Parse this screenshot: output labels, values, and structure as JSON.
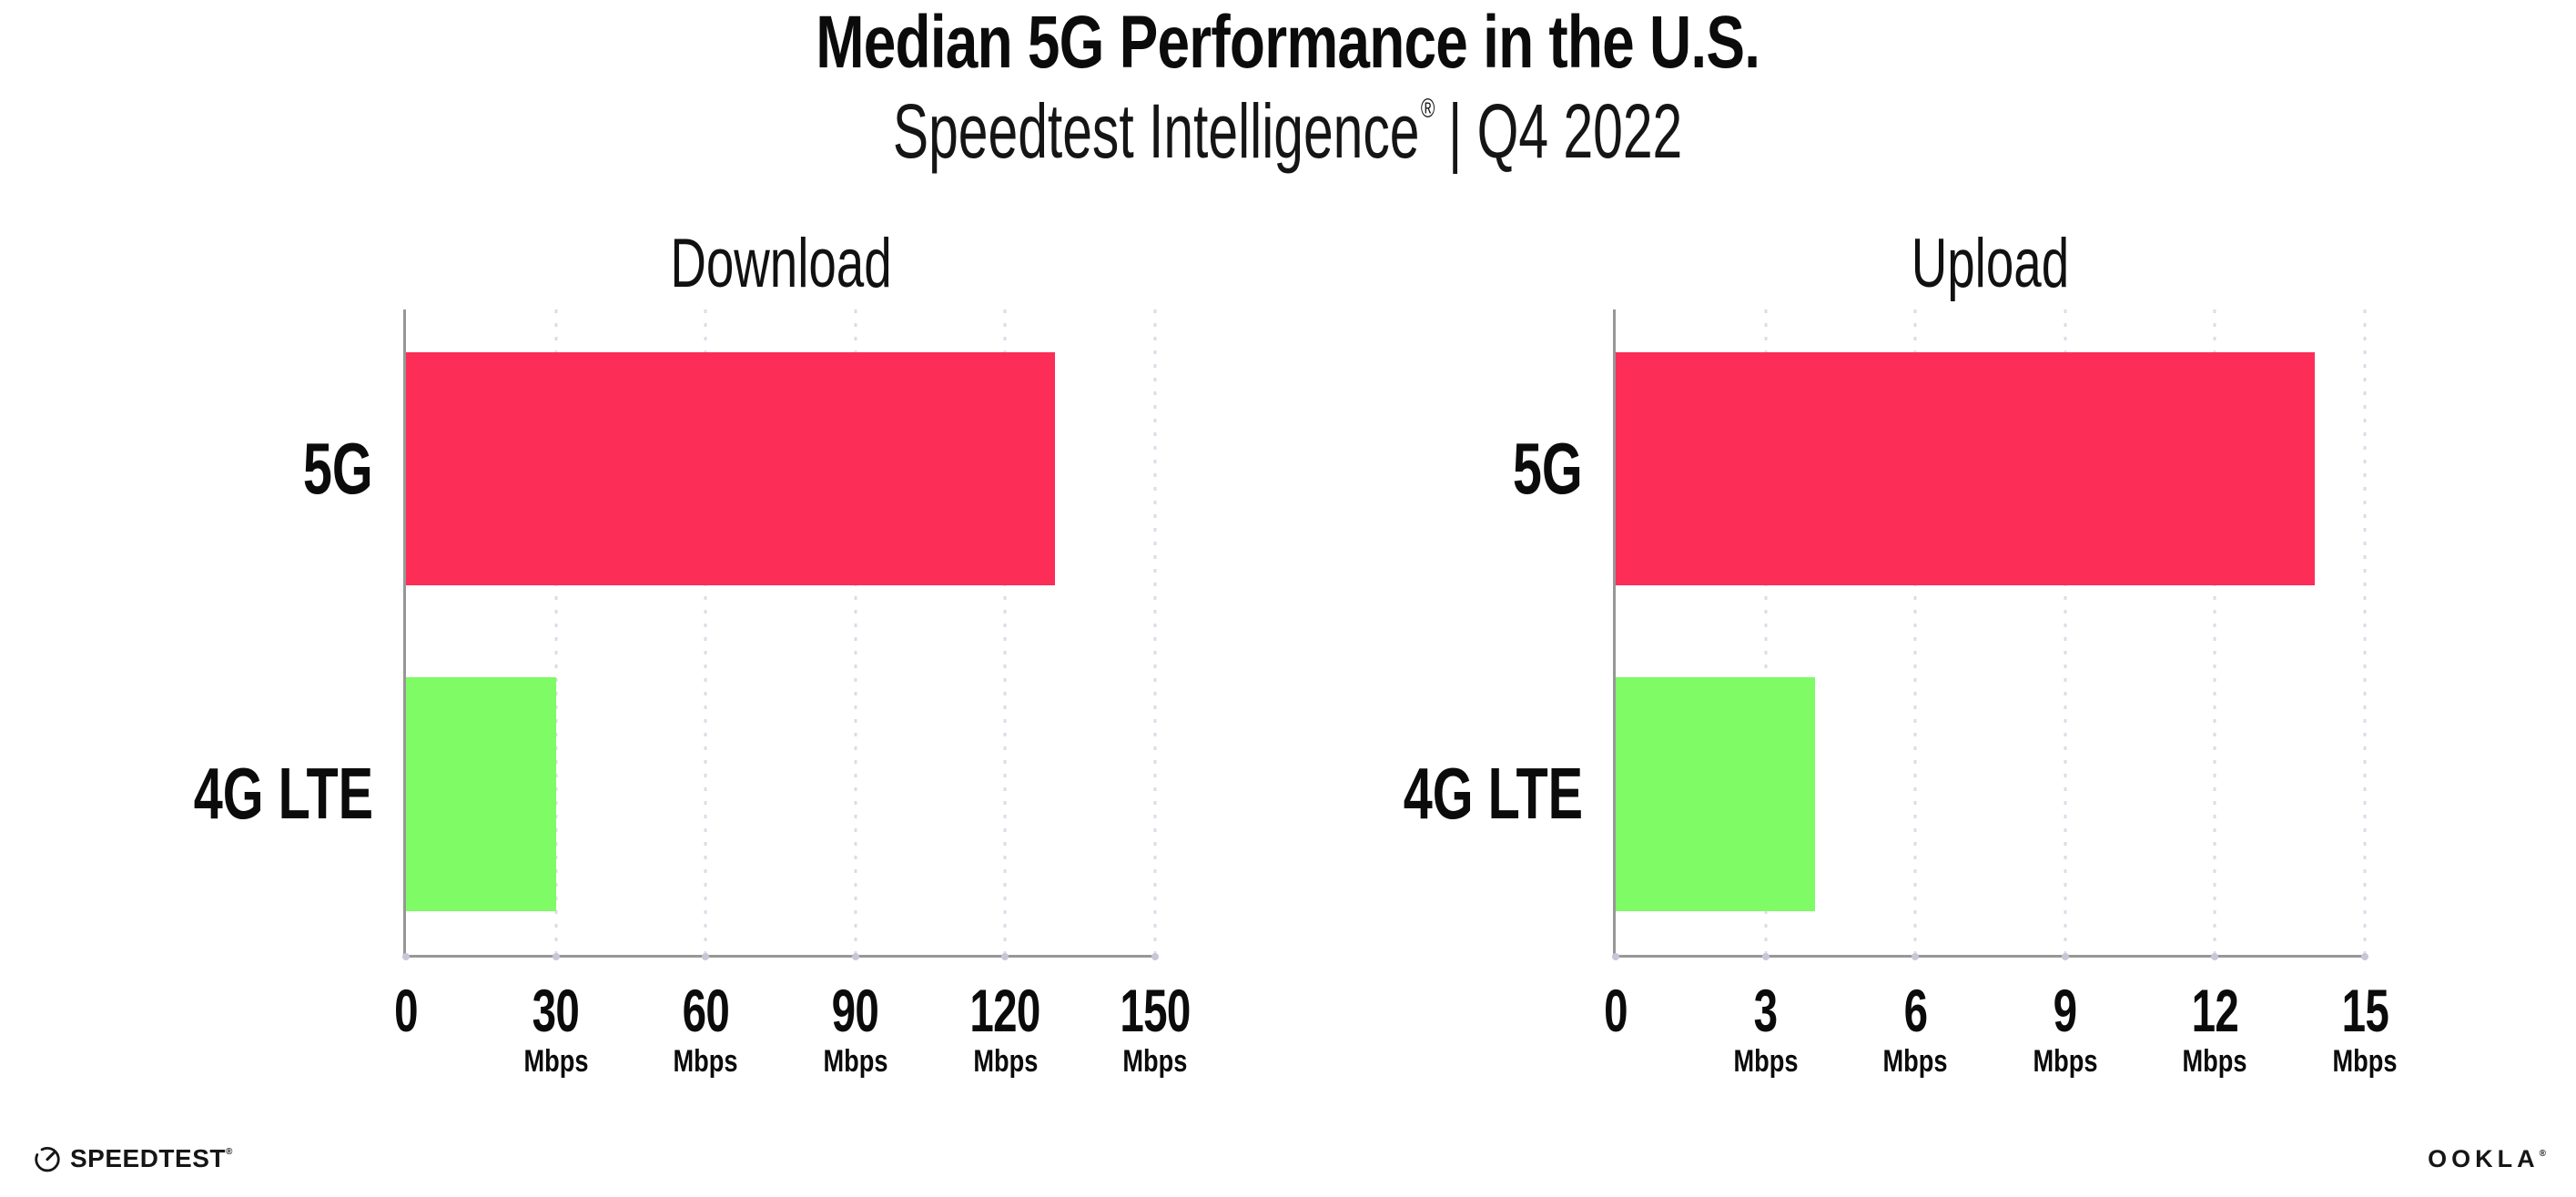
{
  "header": {
    "title": "Median 5G Performance in the U.S.",
    "subtitle_brand": "Speedtest Intelligence",
    "subtitle_mark": "®",
    "subtitle_rest": "| Q4 2022"
  },
  "footer": {
    "speedtest_label": "SPEEDTEST",
    "speedtest_mark": "®",
    "ookla_label": "OOKLA",
    "ookla_mark": "®"
  },
  "colors": {
    "bar_5g": "#FC2D57",
    "bar_4g_lte": "#7EFB65",
    "axis_line": "#979797",
    "gridline_dots": "#DCDCE8",
    "axis_tick_dots": "#C7C7D8",
    "text": "#0B0B0B",
    "background": "#FFFFFF"
  },
  "chart_data": [
    {
      "type": "bar",
      "orientation": "horizontal",
      "title": "Download",
      "categories": [
        "5G",
        "4G LTE"
      ],
      "values": [
        130,
        30
      ],
      "unit": "Mbps",
      "xlim": [
        0,
        150
      ],
      "xticks": [
        0,
        30,
        60,
        90,
        120,
        150
      ],
      "bar_colors": [
        "#FC2D57",
        "#7EFB65"
      ],
      "grid": "dotted vertical gridlines at each tick",
      "legend_position": "none"
    },
    {
      "type": "bar",
      "orientation": "horizontal",
      "title": "Upload",
      "categories": [
        "5G",
        "4G LTE"
      ],
      "values": [
        14,
        4
      ],
      "unit": "Mbps",
      "xlim": [
        0,
        15
      ],
      "xticks": [
        0,
        3,
        6,
        9,
        12,
        15
      ],
      "bar_colors": [
        "#FC2D57",
        "#7EFB65"
      ],
      "grid": "dotted vertical gridlines at each tick",
      "legend_position": "none"
    }
  ]
}
